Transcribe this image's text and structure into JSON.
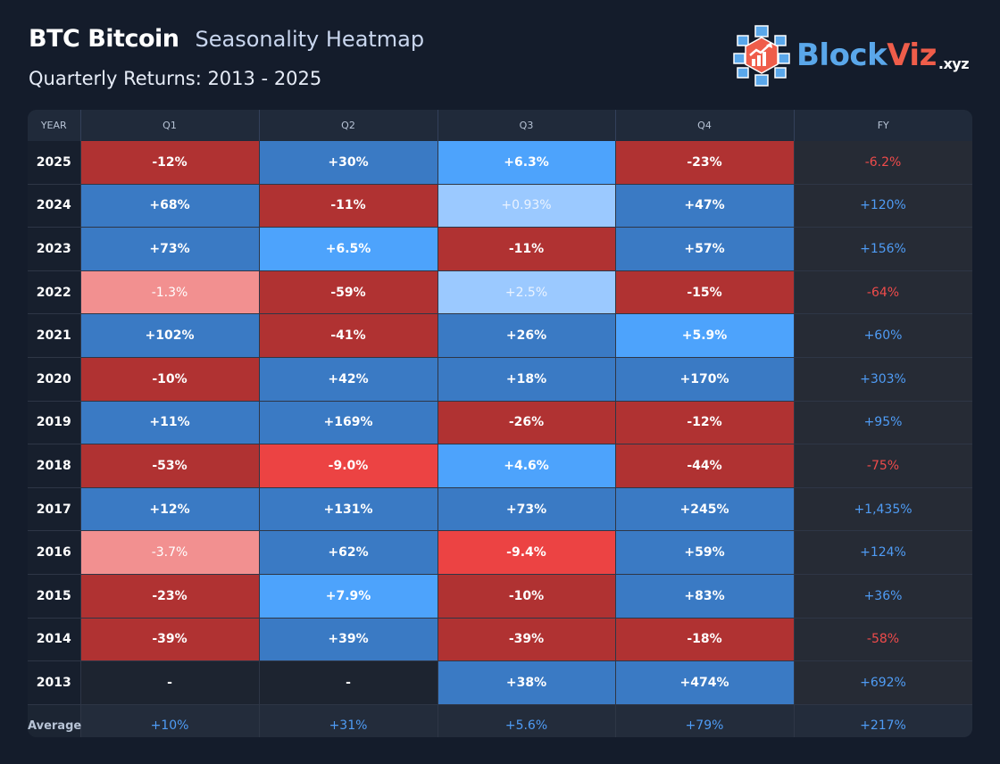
{
  "header": {
    "title": "BTC Bitcoin",
    "subtitle": "Seasonality Heatmap",
    "period": "Quarterly Returns: 2013 - 2025"
  },
  "logo": {
    "part1": "Block",
    "part2": "Viz",
    "suffix": ".xyz"
  },
  "colors": {
    "positive_large": "#3a7ac4",
    "positive_small": "#4da3fc",
    "positive_very_small": "#9bc9ff",
    "negative_large": "#b03232",
    "negative_medium": "#ec4343",
    "negative_small": "#f29090",
    "fy_positive_text": "#4f9cf5",
    "fy_negative_text": "#ef4b4b"
  },
  "chart_data": {
    "type": "heatmap",
    "columns": [
      "YEAR",
      "Q1",
      "Q2",
      "Q3",
      "Q4",
      "FY"
    ],
    "rows": [
      {
        "year": "2025",
        "q": [
          "-12%",
          "+30%",
          "+6.3%",
          "-23%"
        ],
        "fy": "-6.2%",
        "q_values": [
          -12,
          30,
          6.3,
          -23
        ],
        "fy_value": -6.2
      },
      {
        "year": "2024",
        "q": [
          "+68%",
          "-11%",
          "+0.93%",
          "+47%"
        ],
        "fy": "+120%",
        "q_values": [
          68,
          -11,
          0.93,
          47
        ],
        "fy_value": 120
      },
      {
        "year": "2023",
        "q": [
          "+73%",
          "+6.5%",
          "-11%",
          "+57%"
        ],
        "fy": "+156%",
        "q_values": [
          73,
          6.5,
          -11,
          57
        ],
        "fy_value": 156
      },
      {
        "year": "2022",
        "q": [
          "-1.3%",
          "-59%",
          "+2.5%",
          "-15%"
        ],
        "fy": "-64%",
        "q_values": [
          -1.3,
          -59,
          2.5,
          -15
        ],
        "fy_value": -64
      },
      {
        "year": "2021",
        "q": [
          "+102%",
          "-41%",
          "+26%",
          "+5.9%"
        ],
        "fy": "+60%",
        "q_values": [
          102,
          -41,
          26,
          5.9
        ],
        "fy_value": 60
      },
      {
        "year": "2020",
        "q": [
          "-10%",
          "+42%",
          "+18%",
          "+170%"
        ],
        "fy": "+303%",
        "q_values": [
          -10,
          42,
          18,
          170
        ],
        "fy_value": 303
      },
      {
        "year": "2019",
        "q": [
          "+11%",
          "+169%",
          "-26%",
          "-12%"
        ],
        "fy": "+95%",
        "q_values": [
          11,
          169,
          -26,
          -12
        ],
        "fy_value": 95
      },
      {
        "year": "2018",
        "q": [
          "-53%",
          "-9.0%",
          "+4.6%",
          "-44%"
        ],
        "fy": "-75%",
        "q_values": [
          -53,
          -9.0,
          4.6,
          -44
        ],
        "fy_value": -75
      },
      {
        "year": "2017",
        "q": [
          "+12%",
          "+131%",
          "+73%",
          "+245%"
        ],
        "fy": "+1,435%",
        "q_values": [
          12,
          131,
          73,
          245
        ],
        "fy_value": 1435
      },
      {
        "year": "2016",
        "q": [
          "-3.7%",
          "+62%",
          "-9.4%",
          "+59%"
        ],
        "fy": "+124%",
        "q_values": [
          -3.7,
          62,
          -9.4,
          59
        ],
        "fy_value": 124
      },
      {
        "year": "2015",
        "q": [
          "-23%",
          "+7.9%",
          "-10%",
          "+83%"
        ],
        "fy": "+36%",
        "q_values": [
          -23,
          7.9,
          -10,
          83
        ],
        "fy_value": 36
      },
      {
        "year": "2014",
        "q": [
          "-39%",
          "+39%",
          "-39%",
          "-18%"
        ],
        "fy": "-58%",
        "q_values": [
          -39,
          39,
          -39,
          -18
        ],
        "fy_value": -58
      },
      {
        "year": "2013",
        "q": [
          "-",
          "-",
          "+38%",
          "+474%"
        ],
        "fy": "+692%",
        "q_values": [
          null,
          null,
          38,
          474
        ],
        "fy_value": 692
      }
    ],
    "average": {
      "label": "Average",
      "q": [
        "+10%",
        "+31%",
        "+5.6%",
        "+79%"
      ],
      "fy": "+217%",
      "q_values": [
        10,
        31,
        5.6,
        79
      ],
      "fy_value": 217
    }
  }
}
